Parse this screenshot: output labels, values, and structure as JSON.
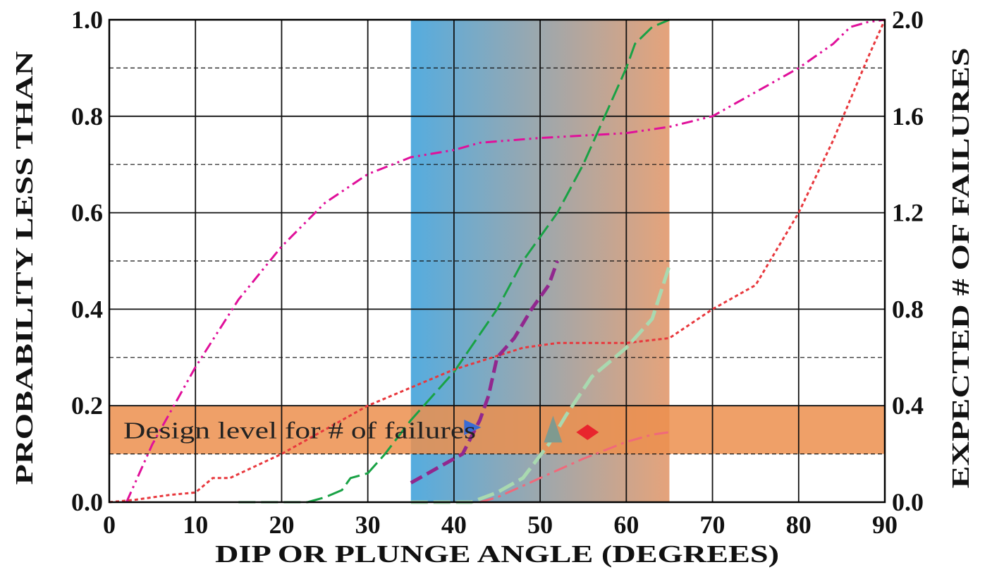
{
  "chart_data": {
    "type": "line",
    "title": "",
    "xlabel": "DIP OR PLUNGE ANGLE (DEGREES)",
    "ylabel_left": "PROBABILITY LESS THAN",
    "ylabel_right": "EXPECTED # OF FAILURES",
    "xlim": [
      0,
      90
    ],
    "ylim_left": [
      0,
      1
    ],
    "ylim_right": [
      0,
      2
    ],
    "x_ticks": [
      "0",
      "10",
      "20",
      "30",
      "40",
      "50",
      "60",
      "70",
      "80",
      "90"
    ],
    "y_ticks_left": [
      "0.0",
      "0.2",
      "0.4",
      "0.6",
      "0.8",
      "1.0"
    ],
    "y_ticks_right": [
      "0.0",
      "0.4",
      "0.8",
      "1.2",
      "1.6",
      "2.0"
    ],
    "grid": true,
    "legend": "none",
    "shaded_band": {
      "x_range": [
        35,
        65
      ],
      "color_start": "#55acdf",
      "color_end": "#e5a37b"
    },
    "design_level": {
      "label": "Design level for # of failures",
      "y_range_right": [
        0.2,
        0.4
      ],
      "color": "#ec8f4e"
    },
    "series": [
      {
        "axis": "left",
        "color": "#e0109a",
        "style": "dash-dot-dot",
        "points": [
          [
            2,
            0
          ],
          [
            5,
            0.12
          ],
          [
            10,
            0.28
          ],
          [
            15,
            0.42
          ],
          [
            20,
            0.53
          ],
          [
            25,
            0.62
          ],
          [
            30,
            0.68
          ],
          [
            35,
            0.715
          ],
          [
            40,
            0.73
          ],
          [
            43,
            0.745
          ],
          [
            50,
            0.755
          ],
          [
            55,
            0.76
          ],
          [
            60,
            0.765
          ],
          [
            65,
            0.778
          ],
          [
            70,
            0.8
          ],
          [
            75,
            0.85
          ],
          [
            80,
            0.9
          ],
          [
            84,
            0.95
          ],
          [
            86,
            0.985
          ],
          [
            88,
            0.995
          ],
          [
            90,
            1.0
          ]
        ]
      },
      {
        "axis": "left",
        "color": "#19a245",
        "style": "long-dash",
        "points": [
          [
            15,
            0
          ],
          [
            23,
            0
          ],
          [
            25,
            0.01
          ],
          [
            27,
            0.025
          ],
          [
            28,
            0.05
          ],
          [
            30,
            0.06
          ],
          [
            32,
            0.1
          ],
          [
            35,
            0.17
          ],
          [
            40,
            0.27
          ],
          [
            45,
            0.4
          ],
          [
            48,
            0.5
          ],
          [
            52,
            0.6
          ],
          [
            55,
            0.7
          ],
          [
            58,
            0.82
          ],
          [
            60,
            0.9
          ],
          [
            61,
            0.95
          ],
          [
            63,
            0.985
          ],
          [
            65,
            1.0
          ]
        ]
      },
      {
        "axis": "left",
        "color": "#e8383d",
        "style": "dotted",
        "points": [
          [
            0,
            0
          ],
          [
            3,
            0.005
          ],
          [
            7,
            0.015
          ],
          [
            10,
            0.02
          ],
          [
            12,
            0.05
          ],
          [
            14,
            0.05
          ],
          [
            20,
            0.1
          ],
          [
            30,
            0.2
          ],
          [
            40,
            0.275
          ],
          [
            48,
            0.32
          ],
          [
            52,
            0.33
          ],
          [
            60,
            0.33
          ],
          [
            65,
            0.34
          ],
          [
            70,
            0.4
          ],
          [
            75,
            0.45
          ],
          [
            80,
            0.6
          ],
          [
            84,
            0.75
          ],
          [
            88,
            0.92
          ],
          [
            90,
            1.0
          ]
        ]
      },
      {
        "axis": "left",
        "color": "#91278e",
        "style": "dash",
        "points": [
          [
            35,
            0.04
          ],
          [
            38,
            0.07
          ],
          [
            41,
            0.1
          ],
          [
            43,
            0.17
          ],
          [
            44,
            0.22
          ],
          [
            45,
            0.3
          ],
          [
            47,
            0.34
          ],
          [
            49,
            0.4
          ],
          [
            51,
            0.45
          ],
          [
            52,
            0.5
          ]
        ]
      },
      {
        "axis": "left",
        "color": "#a9d9b0",
        "style": "long-dash",
        "points": [
          [
            35,
            0
          ],
          [
            38,
            0
          ],
          [
            42,
            0
          ],
          [
            45,
            0.02
          ],
          [
            48,
            0.05
          ],
          [
            51,
            0.12
          ],
          [
            53,
            0.18
          ],
          [
            56,
            0.26
          ],
          [
            60,
            0.32
          ],
          [
            63,
            0.38
          ],
          [
            65,
            0.49
          ]
        ]
      },
      {
        "axis": "left",
        "color": "#f0697a",
        "style": "dash-dot",
        "points": [
          [
            43,
            0
          ],
          [
            45,
            0.01
          ],
          [
            50,
            0.05
          ],
          [
            55,
            0.09
          ],
          [
            60,
            0.125
          ],
          [
            63,
            0.14
          ],
          [
            65,
            0.145
          ]
        ]
      }
    ],
    "markers": [
      {
        "axis": "left",
        "x": 42,
        "y": 0.155,
        "shape": "triangle-right",
        "color": "#3a6bd4"
      },
      {
        "axis": "left",
        "x": 51.5,
        "y": 0.15,
        "shape": "triangle-up",
        "color": "#7f9a8f"
      },
      {
        "axis": "left",
        "x": 55.5,
        "y": 0.145,
        "shape": "diamond",
        "color": "#e8252d"
      }
    ]
  }
}
